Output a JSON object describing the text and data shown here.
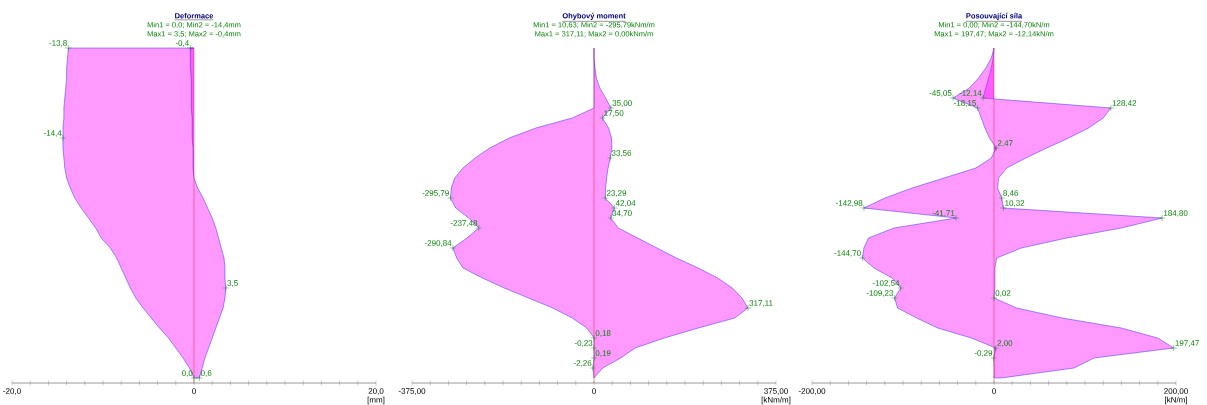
{
  "chart_data": [
    {
      "type": "area",
      "orientation": "horizontal",
      "title": "Deformace",
      "subtitle": "Min1 = 0,0; Min2 = -14,4mm",
      "annotations": [
        "Max1 = 3,5; Max2 = -0,4mm"
      ],
      "xlabel": "[mm]",
      "categories": [
        null,
        null,
        null,
        null,
        null,
        null,
        null,
        null,
        null,
        null,
        null,
        null,
        null,
        null,
        null,
        null,
        null,
        null,
        null,
        null,
        null,
        null,
        null,
        null,
        null,
        null,
        null,
        null,
        null,
        null,
        null,
        null,
        null,
        null
      ],
      "series": [
        {
          "color": "#ff00ff",
          "values": [
            -13.8,
            -13.9,
            -14.0,
            -14.0,
            -14.1,
            -14.2,
            -14.3,
            -14.3,
            -14.4,
            -14.4,
            -14.4,
            -14.3,
            -14.2,
            -14.0,
            -13.6,
            -13.1,
            -12.4,
            -11.6,
            -10.8,
            -10.2,
            -9.2,
            -8.5,
            -8.0,
            -7.5,
            -7.0,
            -6.4,
            -5.6,
            -4.7,
            -3.8,
            -2.8,
            -2.0,
            -1.2,
            -0.5,
            0.0
          ],
          "value_labels": [
            "-13,8",
            null,
            null,
            null,
            null,
            null,
            null,
            null,
            null,
            "-14,4",
            null,
            null,
            null,
            null,
            null,
            null,
            null,
            null,
            null,
            null,
            null,
            null,
            null,
            null,
            null,
            null,
            null,
            null,
            null,
            null,
            null,
            null,
            null,
            "0,0"
          ]
        },
        {
          "color": "#ff00ff",
          "values": [
            -0.4,
            -0.4,
            -0.4,
            -0.3,
            -0.3,
            -0.3,
            -0.3,
            -0.2,
            -0.2,
            -0.2,
            -0.1,
            -0.1,
            -0.1,
            0.0,
            0.4,
            1.0,
            1.5,
            2.0,
            2.4,
            2.7,
            3.0,
            3.3,
            3.4,
            3.4,
            3.5,
            3.4,
            3.2,
            2.8,
            2.4,
            2.0,
            1.6,
            1.2,
            0.9,
            0.6
          ],
          "value_labels": [
            "-0,4",
            null,
            null,
            null,
            null,
            null,
            null,
            null,
            null,
            null,
            null,
            null,
            null,
            null,
            null,
            null,
            null,
            null,
            null,
            null,
            null,
            null,
            null,
            null,
            "3,5",
            null,
            null,
            null,
            null,
            null,
            null,
            null,
            null,
            "0,6"
          ]
        }
      ],
      "xlim": [
        -20,
        20
      ],
      "xticks": [
        {
          "value": -20,
          "label": "-20,0"
        },
        {
          "value": -18,
          "label": null
        },
        {
          "value": -16,
          "label": null
        },
        {
          "value": -14,
          "label": null
        },
        {
          "value": -12,
          "label": null
        },
        {
          "value": -10,
          "label": null
        },
        {
          "value": -8,
          "label": null
        },
        {
          "value": -6,
          "label": null
        },
        {
          "value": -4,
          "label": null
        },
        {
          "value": -2,
          "label": null
        },
        0,
        {
          "value": 2,
          "label": null
        },
        {
          "value": 4,
          "label": null
        },
        {
          "value": 6,
          "label": null
        },
        {
          "value": 8,
          "label": null
        },
        {
          "value": 10,
          "label": null
        },
        {
          "value": 12,
          "label": null
        },
        {
          "value": 14,
          "label": null
        },
        {
          "value": 16,
          "label": null
        },
        {
          "value": 18,
          "label": null
        },
        {
          "value": 20,
          "label": "20,0"
        }
      ],
      "ref_lines": [
        {
          "axis": "x",
          "value": 0,
          "color": "#ff0000"
        }
      ]
    },
    {
      "type": "area",
      "orientation": "horizontal",
      "title": "Ohybový moment",
      "subtitle": "Min1 = 10,63; Min2 = -295,79kNm/m",
      "annotations": [
        "Max1 = 317,11; Max2 = 0,00kNm/m"
      ],
      "xlabel": "[kNm/m]",
      "categories": [
        null,
        null,
        null,
        null,
        null,
        null,
        null,
        null,
        null,
        null,
        null,
        null,
        null,
        null,
        null,
        null,
        null,
        null,
        null,
        null,
        null,
        null,
        null,
        null,
        null,
        null,
        null,
        null,
        null,
        null,
        null,
        null,
        null,
        null
      ],
      "series": [
        {
          "color": "#ff00ff",
          "values": [
            0,
            0,
            2,
            5,
            12,
            24,
            35.0,
            17.5,
            30,
            36,
            37,
            33.56,
            29,
            26,
            24,
            23.29,
            42.04,
            34.7,
            50,
            90,
            130,
            170,
            215,
            255,
            285,
            305,
            317.11,
            290,
            215,
            145,
            85,
            55,
            18,
            0
          ],
          "value_labels": [
            null,
            null,
            null,
            null,
            null,
            null,
            "35,00",
            "17,50",
            null,
            null,
            null,
            "33,56",
            null,
            null,
            null,
            "23,29",
            "42,04",
            "34,70",
            null,
            null,
            null,
            null,
            null,
            null,
            null,
            null,
            "317,11",
            null,
            null,
            null,
            null,
            null,
            null,
            null
          ]
        },
        {
          "color": "#ff00ff",
          "values": [
            0,
            0,
            0,
            0,
            0,
            0,
            0,
            -45,
            -120,
            -175,
            -215,
            -245,
            -270,
            -287,
            -294,
            -295.79,
            -285,
            -258,
            -237.48,
            -262,
            -290.84,
            -283,
            -270,
            -230,
            -185,
            -135,
            -85,
            -45,
            -15,
            0.18,
            -0.23,
            0.19,
            -2.26,
            0
          ],
          "value_labels": [
            null,
            null,
            null,
            null,
            null,
            null,
            null,
            null,
            null,
            null,
            null,
            null,
            null,
            null,
            null,
            "-295,79",
            null,
            null,
            "-237,48",
            null,
            "-290,84",
            null,
            null,
            null,
            null,
            null,
            null,
            null,
            null,
            "0,18",
            "-0,23",
            "0,19",
            "-2,26",
            null
          ]
        }
      ],
      "xlim": [
        -375,
        375
      ],
      "xticks": [
        {
          "value": -375,
          "label": "-375,00"
        },
        {
          "value": -337.5,
          "label": null
        },
        {
          "value": -300,
          "label": null
        },
        {
          "value": -262.5,
          "label": null
        },
        {
          "value": -225,
          "label": null
        },
        {
          "value": -187.5,
          "label": null
        },
        {
          "value": -150,
          "label": null
        },
        {
          "value": -112.5,
          "label": null
        },
        {
          "value": -75,
          "label": null
        },
        {
          "value": -37.5,
          "label": null
        },
        0,
        {
          "value": 37.5,
          "label": null
        },
        {
          "value": 75,
          "label": null
        },
        {
          "value": 112.5,
          "label": null
        },
        {
          "value": 150,
          "label": null
        },
        {
          "value": 187.5,
          "label": null
        },
        {
          "value": 225,
          "label": null
        },
        {
          "value": 262.5,
          "label": null
        },
        {
          "value": 300,
          "label": null
        },
        {
          "value": 337.5,
          "label": null
        },
        {
          "value": 375,
          "label": "375,00"
        }
      ],
      "ref_lines": [
        {
          "axis": "x",
          "value": 0,
          "color": "#ff0000"
        }
      ]
    },
    {
      "type": "area",
      "orientation": "horizontal",
      "title": "Posouvající síla",
      "subtitle": "Min1 = 0,00; Min2 = -144,70kN/m",
      "annotations": [
        "Max1 = 197,47; Max2 = -12,14kN/m"
      ],
      "xlabel": "[kN/m]",
      "categories": [
        null,
        null,
        null,
        null,
        null,
        null,
        null,
        null,
        null,
        null,
        null,
        null,
        null,
        null,
        null,
        null,
        null,
        null,
        null,
        null,
        null,
        null,
        null,
        null,
        null,
        null,
        null,
        null,
        null,
        null,
        null,
        null,
        null,
        null
      ],
      "series": [
        {
          "color": "#ff00ff",
          "values": [
            0,
            -1,
            -3,
            -6,
            -9,
            -12.14,
            128.42,
            120,
            104,
            82,
            58,
            35,
            14,
            5,
            4,
            8.46,
            10.32,
            184.8,
            140,
            80,
            30,
            3,
            1,
            1,
            1,
            0.02,
            25,
            75,
            140,
            180,
            197.47,
            110,
            88,
            8
          ],
          "value_labels": [
            null,
            null,
            null,
            null,
            null,
            "-12,14",
            "128,42",
            null,
            null,
            null,
            null,
            null,
            null,
            null,
            null,
            "8,46",
            "10,32",
            "184,80",
            null,
            null,
            null,
            null,
            null,
            null,
            null,
            "0,02",
            null,
            null,
            null,
            null,
            "197,47",
            null,
            null,
            null
          ]
        },
        {
          "color": "#ff00ff",
          "values": [
            0,
            -3,
            -9,
            -17,
            -27,
            -45.05,
            -18.15,
            -14,
            -10,
            -5,
            2.47,
            -3,
            -20,
            -55,
            -90,
            -120,
            -142.98,
            -41.71,
            -110,
            -138,
            -143,
            -144.7,
            -132,
            -112,
            -102.54,
            -109.23,
            -106,
            -85,
            -62,
            -25,
            2.0,
            -0.29,
            0,
            0
          ],
          "value_labels": [
            null,
            null,
            null,
            null,
            null,
            "-45,05",
            "-18,15",
            null,
            null,
            null,
            "2,47",
            null,
            null,
            null,
            null,
            null,
            "-142,98",
            "-41,71",
            null,
            null,
            null,
            "-144,70",
            null,
            null,
            "-102,54",
            "-109,23",
            null,
            null,
            null,
            null,
            "2,00",
            "-0,29",
            null,
            null
          ]
        }
      ],
      "xlim": [
        -200,
        200
      ],
      "xticks": [
        {
          "value": -200,
          "label": "-200,00"
        },
        {
          "value": -180,
          "label": null
        },
        {
          "value": -160,
          "label": null
        },
        {
          "value": -140,
          "label": null
        },
        {
          "value": -120,
          "label": null
        },
        {
          "value": -100,
          "label": null
        },
        {
          "value": -80,
          "label": null
        },
        {
          "value": -60,
          "label": null
        },
        {
          "value": -40,
          "label": null
        },
        {
          "value": -20,
          "label": null
        },
        0,
        {
          "value": 20,
          "label": null
        },
        {
          "value": 40,
          "label": null
        },
        {
          "value": 60,
          "label": null
        },
        {
          "value": 80,
          "label": null
        },
        {
          "value": 100,
          "label": null
        },
        {
          "value": 120,
          "label": null
        },
        {
          "value": 140,
          "label": null
        },
        {
          "value": 160,
          "label": null
        },
        {
          "value": 180,
          "label": null
        },
        {
          "value": 200,
          "label": "200,00"
        }
      ],
      "ref_lines": [
        {
          "axis": "x",
          "value": 0,
          "color": "#ff0000"
        }
      ]
    }
  ]
}
